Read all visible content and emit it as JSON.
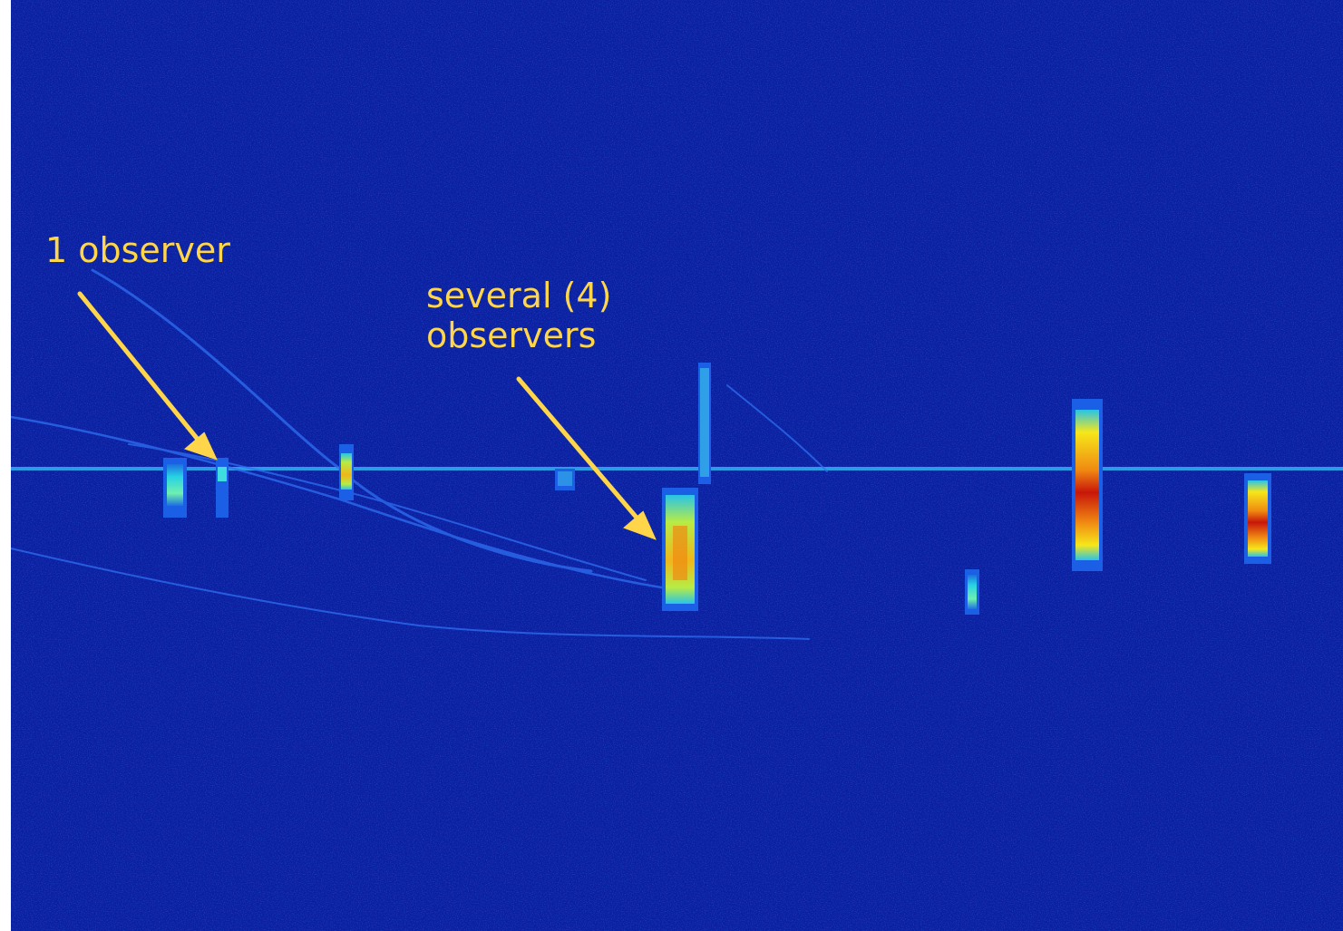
{
  "annotations": {
    "one_observer": "1 observer",
    "several_line1": "several (4)",
    "several_line2": "observers"
  },
  "colors": {
    "background": "#0b1fa0",
    "annotation": "#ffd54a",
    "echo_strong": "#d81e05",
    "echo_medium": "#f6e71a",
    "echo_weak": "#1fd7e0"
  }
}
